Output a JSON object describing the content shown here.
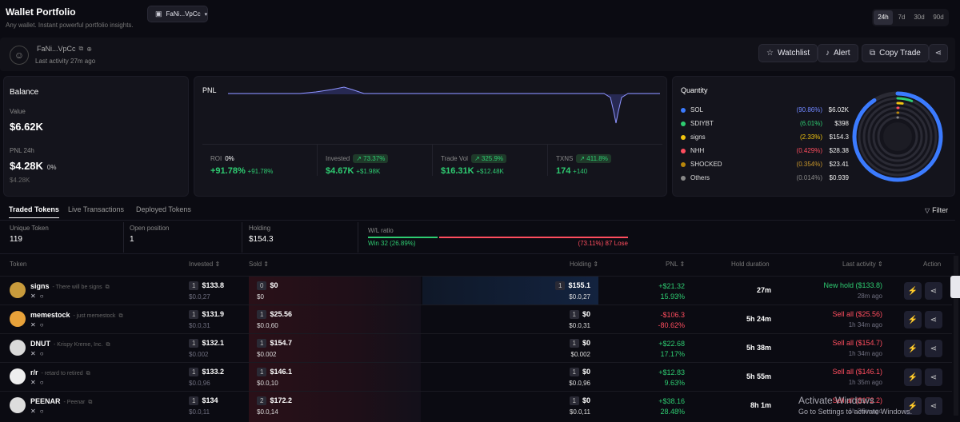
{
  "header": {
    "title": "Wallet Portfolio",
    "subtitle": "Any wallet. Instant powerful portfolio insights.",
    "wallet_select": "FaNi...VpCc",
    "timeframes": [
      "24h",
      "7d",
      "30d",
      "90d"
    ],
    "active_timeframe": "24h"
  },
  "wallet": {
    "name": "FaNi...VpCc",
    "last_activity": "Last activity 27m ago",
    "watchlist": "Watchlist",
    "alert": "Alert",
    "copy_trade": "Copy Trade"
  },
  "balance": {
    "title": "Balance",
    "value_label": "Value",
    "value": "$6.62K",
    "pnl_label": "PNL 24h",
    "pnl_value": "$4.28K",
    "pnl_pct": "0%",
    "pnl_sub": "$4.28K"
  },
  "pnl": {
    "title": "PNL",
    "stats": [
      {
        "label": "ROI",
        "badge": "0%",
        "value": "+91.78%",
        "delta": "+91.78%"
      },
      {
        "label": "Invested",
        "badge": "↗ 73.37%",
        "value": "$4.67K",
        "delta": "+$1.98K"
      },
      {
        "label": "Trade Vol",
        "badge": "↗ 325.9%",
        "value": "$16.31K",
        "delta": "+$12.48K"
      },
      {
        "label": "TXNS",
        "badge": "↗ 411.8%",
        "value": "174",
        "delta": "+140"
      }
    ]
  },
  "quantity": {
    "title": "Quantity",
    "items": [
      {
        "name": "SOL",
        "pct": "(90.86%)",
        "value": "$6.02K",
        "color": "#3b7bff",
        "pct_color": "#6f86ff",
        "fraction": 0.9086
      },
      {
        "name": "SDIYBT",
        "pct": "(6.01%)",
        "value": "$398",
        "color": "#2ecc71",
        "pct_color": "#2ecc71",
        "fraction": 0.0601
      },
      {
        "name": "signs",
        "pct": "(2.33%)",
        "value": "$154.3",
        "color": "#f1c40f",
        "pct_color": "#f1c40f",
        "fraction": 0.0233
      },
      {
        "name": "NHH",
        "pct": "(0.429%)",
        "value": "$28.38",
        "color": "#ff4d5e",
        "pct_color": "#ff4d5e",
        "fraction": 0.00429
      },
      {
        "name": "SHOCKED",
        "pct": "(0.354%)",
        "value": "$23.41",
        "color": "#b8860b",
        "pct_color": "#c8962b",
        "fraction": 0.00354
      },
      {
        "name": "Others",
        "pct": "(0.014%)",
        "value": "$0.939",
        "color": "#888888",
        "pct_color": "#888888",
        "fraction": 0.00014
      }
    ]
  },
  "tabs": {
    "items": [
      "Traded Tokens",
      "Live Transactions",
      "Deployed Tokens"
    ],
    "active": "Traded Tokens",
    "filter": "Filter"
  },
  "summary": {
    "unique_label": "Unique Token",
    "unique_value": "119",
    "open_label": "Open position",
    "open_value": "1",
    "holding_label": "Holding",
    "holding_value": "$154.3",
    "wl_label": "W/L ratio",
    "win": "Win 32 (26.89%)",
    "lose": "(73.11%) 87 Lose",
    "win_fraction": 0.2689
  },
  "table": {
    "headers": {
      "token": "Token",
      "invested": "Invested ⇕",
      "sold": "Sold ⇕",
      "holding": "Holding ⇕",
      "pnl": "PNL ⇕",
      "hold_duration": "Hold duration",
      "last_activity": "Last activity ⇕",
      "action": "Action"
    },
    "rows": [
      {
        "symbol": "signs",
        "desc": "- There will be signs",
        "inv_n": "1",
        "inv": "$133.8",
        "inv_sub": "$0.0,27",
        "sold_n": "0",
        "sold": "$0",
        "sold_sub": "$0",
        "hold_n": "1",
        "hold": "$155.1",
        "hold_sub": "$0.0,27",
        "pnl": "+$21.32",
        "pnl_pct": "15.93%",
        "pnl_dir": "up",
        "dur": "27m",
        "act": "New hold ($133.8)",
        "act_dir": "up",
        "ago": "28m ago",
        "avatar": "#c89b3c"
      },
      {
        "symbol": "memestock",
        "desc": "- just memestock",
        "inv_n": "1",
        "inv": "$131.9",
        "inv_sub": "$0.0,31",
        "sold_n": "1",
        "sold": "$25.56",
        "sold_sub": "$0.0,60",
        "hold_n": "1",
        "hold": "$0",
        "hold_sub": "$0.0,31",
        "pnl": "-$106.3",
        "pnl_pct": "-80.62%",
        "pnl_dir": "down",
        "dur": "5h 24m",
        "act": "Sell all ($25.56)",
        "act_dir": "down",
        "ago": "1h 34m ago",
        "avatar": "#e8a23a"
      },
      {
        "symbol": "DNUT",
        "desc": "- Krispy Kreme, Inc.",
        "inv_n": "1",
        "inv": "$132.1",
        "inv_sub": "$0.002",
        "sold_n": "1",
        "sold": "$154.7",
        "sold_sub": "$0.002",
        "hold_n": "1",
        "hold": "$0",
        "hold_sub": "$0.002",
        "pnl": "+$22.68",
        "pnl_pct": "17.17%",
        "pnl_dir": "up",
        "dur": "5h 38m",
        "act": "Sell all ($154.7)",
        "act_dir": "down",
        "ago": "1h 34m ago",
        "avatar": "#d9d9d9"
      },
      {
        "symbol": "r/r",
        "desc": "- retard to retired",
        "inv_n": "1",
        "inv": "$133.2",
        "inv_sub": "$0.0,96",
        "sold_n": "1",
        "sold": "$146.1",
        "sold_sub": "$0.0,10",
        "hold_n": "1",
        "hold": "$0",
        "hold_sub": "$0.0,96",
        "pnl": "+$12.83",
        "pnl_pct": "9.63%",
        "pnl_dir": "up",
        "dur": "5h 55m",
        "act": "Sell all ($146.1)",
        "act_dir": "down",
        "ago": "1h 35m ago",
        "avatar": "#eeeeee"
      },
      {
        "symbol": "PEENAR",
        "desc": "- Peenar",
        "inv_n": "1",
        "inv": "$134",
        "inv_sub": "$0.0,11",
        "sold_n": "2",
        "sold": "$172.2",
        "sold_sub": "$0.0,14",
        "hold_n": "1",
        "hold": "$0",
        "hold_sub": "$0.0,11",
        "pnl": "+$38.16",
        "pnl_pct": "28.48%",
        "pnl_dir": "up",
        "dur": "8h 1m",
        "act": "Sell all ($172.2)",
        "act_dir": "down",
        "ago": "1h 36m ago",
        "avatar": "#dddddd"
      }
    ]
  },
  "watermark": {
    "line1": "Activate Windows",
    "line2": "Go to Settings to activate Windows."
  }
}
